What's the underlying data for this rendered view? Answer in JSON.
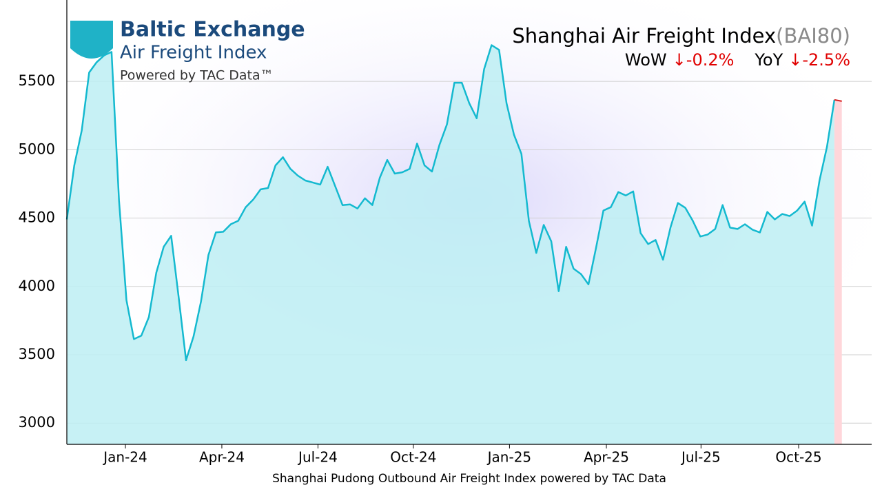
{
  "logo": {
    "name": "Baltic Exchange",
    "product": "Air Freight Index",
    "powered": "Powered by TAC Data™"
  },
  "chart_data": {
    "type": "line",
    "title": "Shanghai Air Freight Index",
    "title_code": "(BAI80)",
    "changes": [
      {
        "label": "WoW",
        "value": "↓-0.2%"
      },
      {
        "label": "YoY",
        "value": "↓-2.5%"
      }
    ],
    "xlabel": "Shanghai Pudong Outbound Air Freight Index powered by TAC Data",
    "color": "#14b9cf",
    "fill_color": "#bdeef3",
    "last_color": "#d81e1e",
    "last_fill_color": "#ffd6da",
    "values": [
      4490,
      4885,
      5140,
      5565,
      5640,
      5690,
      5715,
      4630,
      3900,
      3615,
      3640,
      3775,
      4100,
      4290,
      4370,
      3925,
      3460,
      3635,
      3890,
      4230,
      4395,
      4400,
      4455,
      4480,
      4580,
      4635,
      4710,
      4720,
      4885,
      4945,
      4860,
      4810,
      4775,
      4760,
      4745,
      4875,
      4735,
      4595,
      4600,
      4570,
      4645,
      4595,
      4795,
      4925,
      4825,
      4835,
      4860,
      5045,
      4885,
      4840,
      5035,
      5185,
      5490,
      5490,
      5340,
      5230,
      5590,
      5765,
      5730,
      5340,
      5110,
      4970,
      4480,
      4245,
      4450,
      4330,
      3965,
      4290,
      4130,
      4090,
      4015,
      4280,
      4555,
      4580,
      4690,
      4665,
      4695,
      4390,
      4310,
      4340,
      4195,
      4430,
      4610,
      4575,
      4480,
      4365,
      4380,
      4420,
      4595,
      4430,
      4420,
      4455,
      4415,
      4395,
      4545,
      4490,
      4530,
      4515,
      4555,
      4620,
      4445,
      4775,
      5020,
      5365,
      5355
    ],
    "xlim": [
      0,
      108
    ],
    "xticks": [
      {
        "value": 7.86,
        "label": "Jan-24"
      },
      {
        "value": 20.8,
        "label": "Apr-24"
      },
      {
        "value": 33.7,
        "label": "Jul-24"
      },
      {
        "value": 46.5,
        "label": "Oct-24"
      },
      {
        "value": 59.4,
        "label": "Jan-25"
      },
      {
        "value": 72.4,
        "label": "Apr-25"
      },
      {
        "value": 85.1,
        "label": "Jul-25"
      },
      {
        "value": 98.2,
        "label": "Oct-25"
      }
    ],
    "ylim": [
      2845,
      6095
    ],
    "yticks": [
      3000,
      3500,
      4000,
      4500,
      5000,
      5500
    ],
    "grid": true
  }
}
